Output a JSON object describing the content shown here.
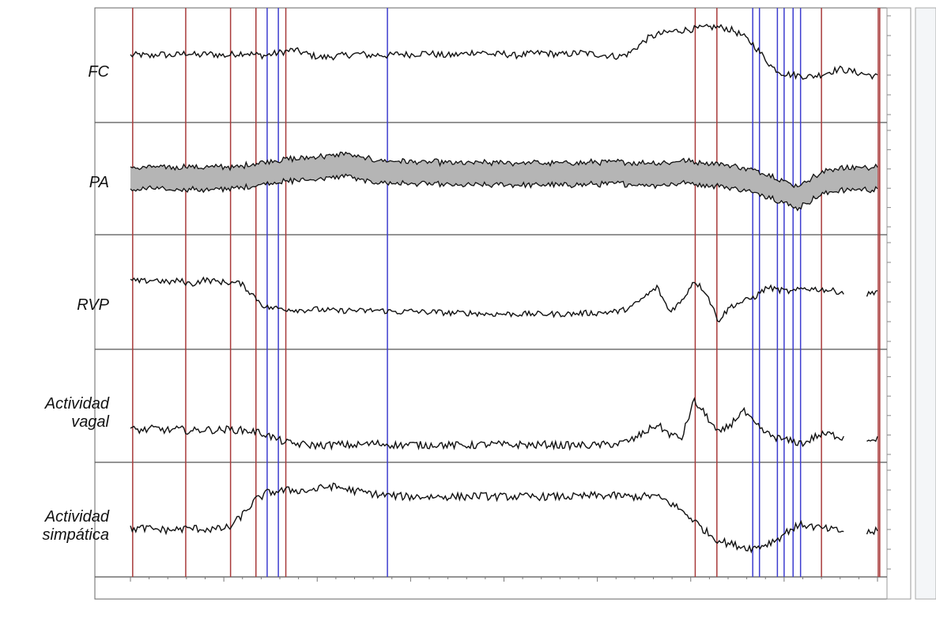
{
  "panels": [
    {
      "id": "fc",
      "lines": [
        "FC"
      ]
    },
    {
      "id": "pa",
      "lines": [
        "PA"
      ]
    },
    {
      "id": "rvp",
      "lines": [
        "RVP"
      ]
    },
    {
      "id": "vagal",
      "lines": [
        "Actividad",
        "vagal"
      ]
    },
    {
      "id": "simp",
      "lines": [
        "Actividad",
        "simpática"
      ]
    }
  ],
  "colors": {
    "trace": "#111111",
    "band_fill": "#b5b5b5",
    "event_red": "#a83a3a",
    "event_blue": "#3c3ccf",
    "grid": "#555555",
    "right_panel": "#f4f6f8"
  },
  "chart_data": {
    "type": "line",
    "x_range": [
      0,
      100
    ],
    "series": [
      {
        "values": [
          60,
          61,
          59,
          62,
          60,
          61,
          63,
          60,
          62,
          61,
          60,
          62,
          63,
          61,
          60,
          62,
          64,
          66,
          63,
          60,
          58,
          59,
          60,
          61,
          62,
          60,
          61,
          60,
          62,
          61,
          62,
          63,
          61,
          60,
          61,
          62,
          64,
          63,
          61,
          62,
          60,
          61,
          62,
          63,
          62,
          61,
          62,
          63,
          62,
          61,
          60,
          59,
          62,
          70,
          78,
          82,
          84,
          86,
          87,
          88,
          89,
          90,
          89,
          86,
          80,
          72,
          60,
          48,
          42,
          40,
          39,
          38,
          40,
          43,
          46,
          44,
          42,
          40,
          38
        ]
      },
      {
        "values": [
          50,
          50,
          51,
          50,
          50,
          51,
          50,
          50,
          51,
          51,
          52,
          54,
          57,
          58,
          59,
          60,
          61,
          62,
          63,
          66,
          61,
          59,
          58,
          57,
          57,
          56,
          56,
          56,
          55,
          55,
          55,
          55,
          55,
          55,
          55,
          55,
          55,
          55,
          55,
          55,
          55,
          56,
          56,
          56,
          56,
          55,
          55,
          55,
          56,
          57,
          56,
          55,
          54,
          52,
          50,
          47,
          44,
          40,
          34,
          30,
          38,
          44,
          48,
          49,
          50,
          50,
          50
        ]
      },
      {
        "values": [
          62,
          61,
          63,
          60,
          62,
          58,
          63,
          61,
          60,
          59,
          47,
          34,
          33,
          32,
          31,
          32,
          31,
          30,
          31,
          30,
          31,
          30,
          29,
          30,
          29,
          29,
          28,
          28,
          28,
          27,
          27,
          27,
          27,
          27,
          27,
          27,
          27,
          28,
          28,
          29,
          30,
          35,
          45,
          55,
          30,
          40,
          62,
          50,
          20,
          35,
          40,
          45,
          55,
          52,
          50,
          54,
          53,
          52,
          50,
          48,
          46,
          52
        ]
      },
      {
        "values": [
          25,
          24,
          26,
          24,
          25,
          23,
          25,
          24,
          25,
          24,
          23,
          20,
          14,
          10,
          9,
          8,
          8,
          9,
          8,
          9,
          10,
          9,
          8,
          9,
          8,
          9,
          8,
          8,
          8,
          9,
          9,
          8,
          9,
          8,
          9,
          8,
          8,
          8,
          8,
          9,
          10,
          14,
          22,
          30,
          20,
          15,
          55,
          40,
          20,
          30,
          45,
          30,
          20,
          15,
          12,
          10,
          18,
          20,
          17,
          15,
          14,
          16
        ]
      },
      {
        "values": [
          40,
          41,
          40,
          39,
          40,
          41,
          40,
          40,
          42,
          55,
          70,
          78,
          80,
          81,
          80,
          82,
          85,
          83,
          80,
          78,
          76,
          75,
          74,
          74,
          74,
          74,
          74,
          74,
          75,
          74,
          74,
          74,
          74,
          74,
          74,
          74,
          74,
          75,
          75,
          75,
          74,
          74,
          75,
          70,
          62,
          52,
          40,
          30,
          25,
          22,
          20,
          24,
          30,
          40,
          45,
          42,
          40,
          38,
          37,
          36,
          38
        ]
      }
    ],
    "events": [
      {
        "x": 0.3,
        "color": "red"
      },
      {
        "x": 7.4,
        "color": "red"
      },
      {
        "x": 13.4,
        "color": "red"
      },
      {
        "x": 16.8,
        "color": "red"
      },
      {
        "x": 18.3,
        "color": "blue"
      },
      {
        "x": 19.8,
        "color": "blue"
      },
      {
        "x": 20.8,
        "color": "red"
      },
      {
        "x": 34.4,
        "color": "blue"
      },
      {
        "x": 75.6,
        "color": "red"
      },
      {
        "x": 78.5,
        "color": "red"
      },
      {
        "x": 83.3,
        "color": "blue"
      },
      {
        "x": 84.2,
        "color": "blue"
      },
      {
        "x": 86.6,
        "color": "blue"
      },
      {
        "x": 87.5,
        "color": "blue"
      },
      {
        "x": 88.7,
        "color": "blue"
      },
      {
        "x": 89.7,
        "color": "blue"
      },
      {
        "x": 92.5,
        "color": "red"
      },
      {
        "x": 100.1,
        "color": "red"
      },
      {
        "x": 100.3,
        "color": "red"
      }
    ]
  }
}
